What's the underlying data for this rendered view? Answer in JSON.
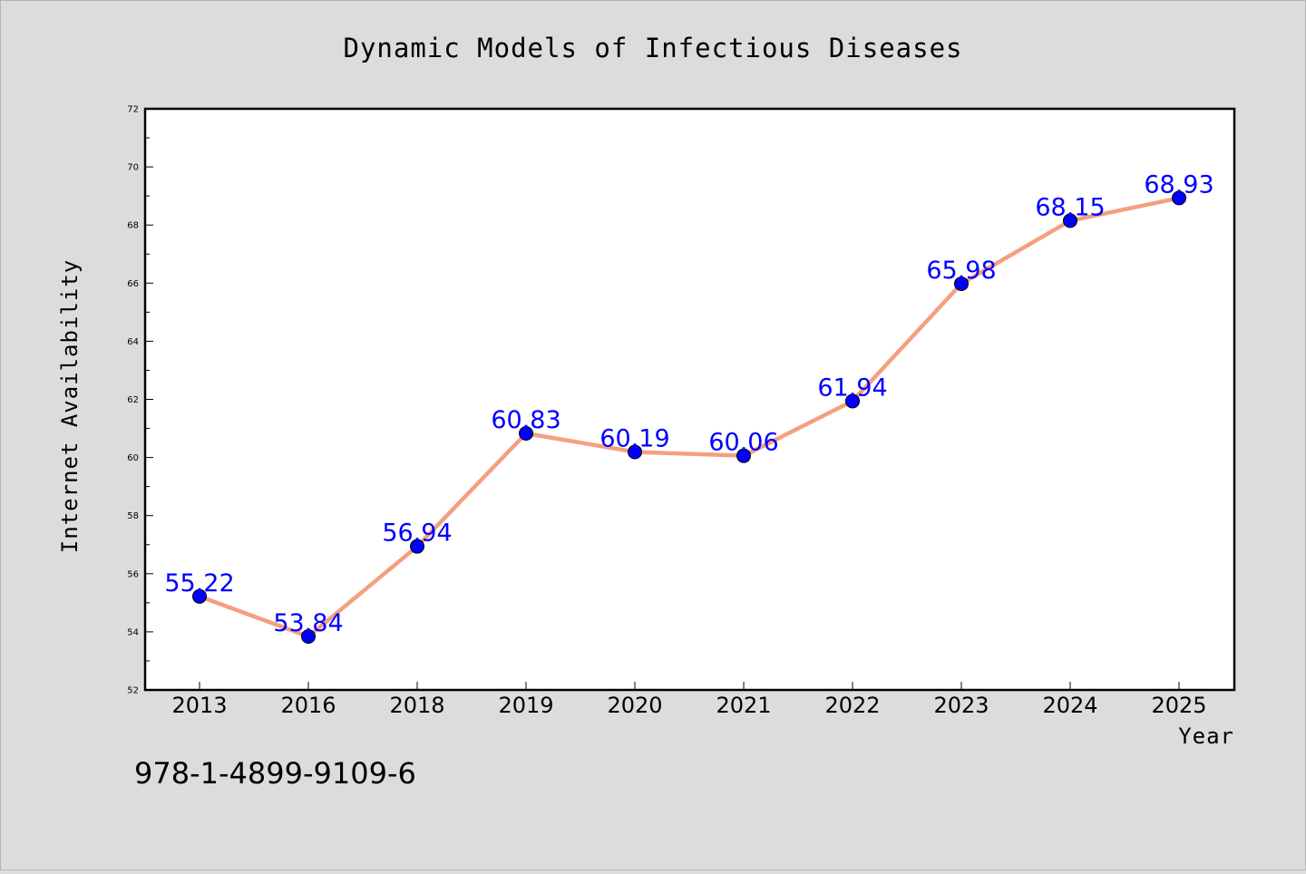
{
  "chart_data": {
    "type": "line",
    "title": "Dynamic Models of Infectious Diseases",
    "xlabel": "Year",
    "ylabel": "Internet Availability",
    "categories": [
      "2013",
      "2016",
      "2018",
      "2019",
      "2020",
      "2021",
      "2022",
      "2023",
      "2024",
      "2025"
    ],
    "values": [
      55.22,
      53.84,
      56.94,
      60.83,
      60.19,
      60.06,
      61.94,
      65.98,
      68.15,
      68.93
    ],
    "data_labels": [
      "55.22",
      "53.84",
      "56.94",
      "60.83",
      "60.19",
      "60.06",
      "61.94",
      "65.98",
      "68.15",
      "68.93"
    ],
    "ylim": [
      52,
      72
    ],
    "yticks": [
      52,
      54,
      56,
      58,
      60,
      62,
      64,
      66,
      68,
      70,
      72
    ],
    "grid": false,
    "line_color": "#f4a080",
    "marker_color": "#0000ff",
    "label_color": "#0000ff"
  },
  "annotation": "978-1-4899-9109-6"
}
